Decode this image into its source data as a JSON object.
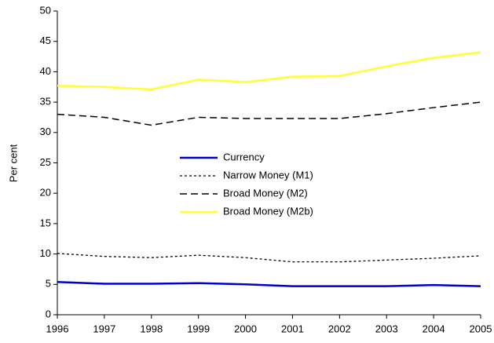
{
  "chart_data": {
    "type": "line",
    "ylabel": "Per cent",
    "x": [
      1996,
      1997,
      1998,
      1999,
      2000,
      2001,
      2002,
      2003,
      2004,
      2005
    ],
    "xlim": [
      1996,
      2005
    ],
    "xticks": [
      1996,
      1997,
      1998,
      1999,
      2000,
      2001,
      2002,
      2003,
      2004,
      2005
    ],
    "ylim": [
      0,
      50
    ],
    "yticks": [
      0,
      5,
      10,
      15,
      20,
      25,
      30,
      35,
      40,
      45,
      50
    ],
    "grid": false,
    "legend": "center",
    "series": [
      {
        "name": "Currency",
        "color": "#0000cc",
        "dash": "solid",
        "values": [
          5.4,
          5.1,
          5.1,
          5.2,
          5.0,
          4.7,
          4.7,
          4.7,
          4.9,
          4.7
        ]
      },
      {
        "name": "Narrow Money (M1)",
        "color": "#000000",
        "dash": "dotted",
        "values": [
          10.1,
          9.6,
          9.4,
          9.8,
          9.4,
          8.7,
          8.7,
          9.0,
          9.3,
          9.7
        ]
      },
      {
        "name": "Broad Money (M2)",
        "color": "#000000",
        "dash": "dashed",
        "values": [
          33.0,
          32.5,
          31.2,
          32.5,
          32.3,
          32.3,
          32.3,
          33.1,
          34.1,
          35.0
        ]
      },
      {
        "name": "Broad Money (M2b)",
        "color": "#ffff33",
        "dash": "solid",
        "values": [
          37.7,
          37.5,
          37.1,
          38.7,
          38.3,
          39.2,
          39.3,
          40.9,
          42.3,
          43.2
        ]
      }
    ]
  }
}
